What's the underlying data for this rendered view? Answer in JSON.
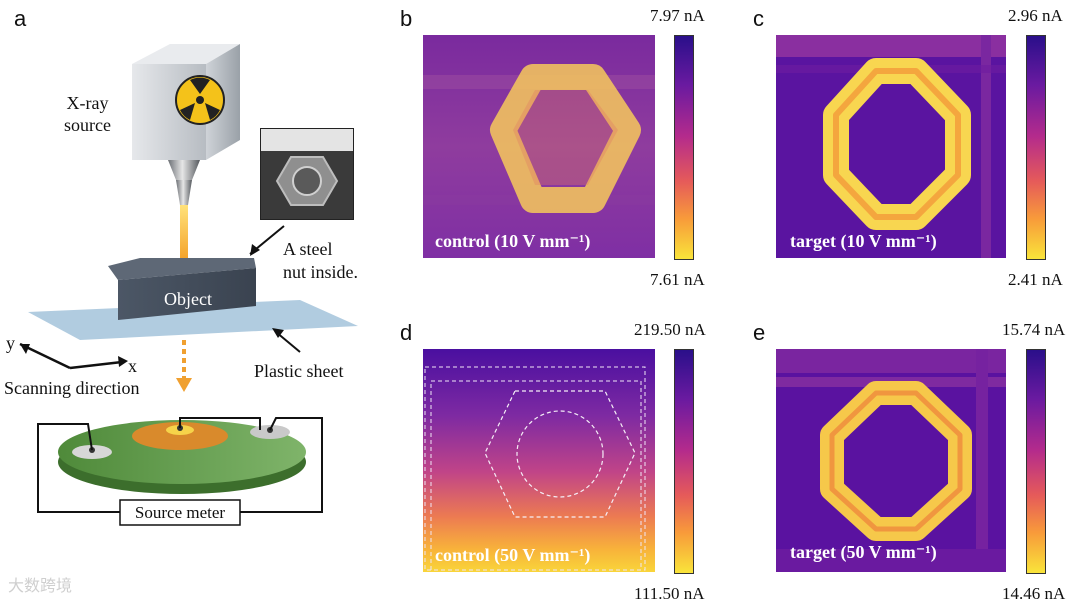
{
  "panels": {
    "a": {
      "letter": "a",
      "xray_line1": "X-ray",
      "xray_line2": "source",
      "object": "Object",
      "nut_line1": "A steel",
      "nut_line2": "nut inside.",
      "plastic": "Plastic sheet",
      "axis_y": "y",
      "axis_x": "x",
      "scanning": "Scanning direction",
      "source_meter": "Source meter"
    },
    "b": {
      "letter": "b",
      "max": "7.97 nA",
      "min": "7.61 nA",
      "label": "control (10 V mm⁻¹)"
    },
    "c": {
      "letter": "c",
      "max": "2.96 nA",
      "min": "2.41 nA",
      "label": "target (10 V mm⁻¹)"
    },
    "d": {
      "letter": "d",
      "max": "219.50 nA",
      "min": "111.50 nA",
      "label": "control (50 V mm⁻¹)"
    },
    "e": {
      "letter": "e",
      "max": "15.74 nA",
      "min": "14.46 nA",
      "label": "target (50 V mm⁻¹)"
    }
  },
  "watermark": "大数跨境",
  "colors": {
    "colormap_top": "#2a0f8a",
    "colormap_mid": "#e55a5a",
    "colormap_bottom": "#f9e43a"
  }
}
